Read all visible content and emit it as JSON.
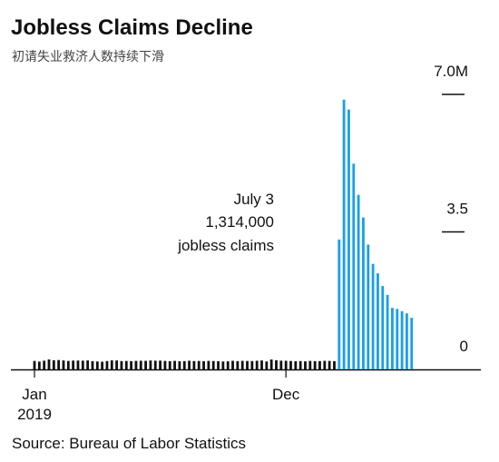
{
  "chart_data": {
    "type": "bar",
    "title": "Jobless Claims Decline",
    "subtitle": "初请失业救济人数持续下滑",
    "source": "Source: Bureau of Labor Statistics",
    "annotation": [
      "July 3",
      "1,314,000",
      "jobless claims"
    ],
    "x_year_label": "2019",
    "categories": [
      "Jan",
      null,
      null,
      null,
      null,
      null,
      null,
      null,
      null,
      null,
      null,
      null,
      null,
      null,
      null,
      null,
      null,
      null,
      null,
      null,
      null,
      null,
      null,
      null,
      null,
      null,
      null,
      null,
      null,
      null,
      null,
      null,
      null,
      null,
      null,
      null,
      null,
      null,
      null,
      null,
      null,
      null,
      null,
      null,
      null,
      null,
      null,
      null,
      null,
      null,
      null,
      null,
      "Dec",
      null,
      null,
      null,
      null,
      null,
      null,
      null,
      null,
      null,
      null,
      null,
      null,
      null,
      null,
      null,
      null,
      null,
      null,
      null,
      null,
      null,
      null,
      null,
      null,
      null,
      null
    ],
    "values": [
      216000,
      199000,
      222000,
      253000,
      234000,
      239000,
      229000,
      216000,
      225000,
      226000,
      223000,
      229000,
      211000,
      202000,
      196000,
      213000,
      230000,
      228000,
      212000,
      215000,
      211000,
      217000,
      221000,
      218000,
      227000,
      222000,
      224000,
      216000,
      209000,
      217000,
      207000,
      212000,
      221000,
      213000,
      215000,
      211000,
      217000,
      213000,
      210000,
      202000,
      206000,
      219000,
      212000,
      218000,
      215000,
      213000,
      220000,
      227000,
      203000,
      252000,
      234000,
      222000,
      220000,
      214000,
      210000,
      212000,
      205000,
      216000,
      211000,
      212000,
      219000,
      216000,
      211000,
      3307000,
      6867000,
      6615000,
      5237000,
      4442000,
      3867000,
      3176000,
      2687000,
      2446000,
      2123000,
      1897000,
      1566000,
      1540000,
      1482000,
      1427000,
      1314000
    ],
    "colors": [
      "#111",
      "#111",
      "#111",
      "#111",
      "#111",
      "#111",
      "#111",
      "#111",
      "#111",
      "#111",
      "#111",
      "#111",
      "#111",
      "#111",
      "#111",
      "#111",
      "#111",
      "#111",
      "#111",
      "#111",
      "#111",
      "#111",
      "#111",
      "#111",
      "#111",
      "#111",
      "#111",
      "#111",
      "#111",
      "#111",
      "#111",
      "#111",
      "#111",
      "#111",
      "#111",
      "#111",
      "#111",
      "#111",
      "#111",
      "#111",
      "#111",
      "#111",
      "#111",
      "#111",
      "#111",
      "#111",
      "#111",
      "#111",
      "#111",
      "#111",
      "#111",
      "#111",
      "#111",
      "#111",
      "#111",
      "#111",
      "#111",
      "#111",
      "#111",
      "#111",
      "#111",
      "#111",
      "#111",
      "#1a9fe8",
      "#1a9fe8",
      "#1a9fe8",
      "#1a9fe8",
      "#1a9fe8",
      "#1a9fe8",
      "#1a9fe8",
      "#1a9fe8",
      "#1a9fe8",
      "#1a9fe8",
      "#1a9fe8",
      "#1a9fe8",
      "#1a9fe8",
      "#1a9fe8",
      "#1a9fe8",
      "#1a9fe8"
    ],
    "ylim": [
      0,
      7000000
    ],
    "yticks": [
      0,
      {
        "value": 3500000,
        "label": "3.5"
      },
      {
        "value": 7000000,
        "label": "7.0M"
      }
    ]
  }
}
